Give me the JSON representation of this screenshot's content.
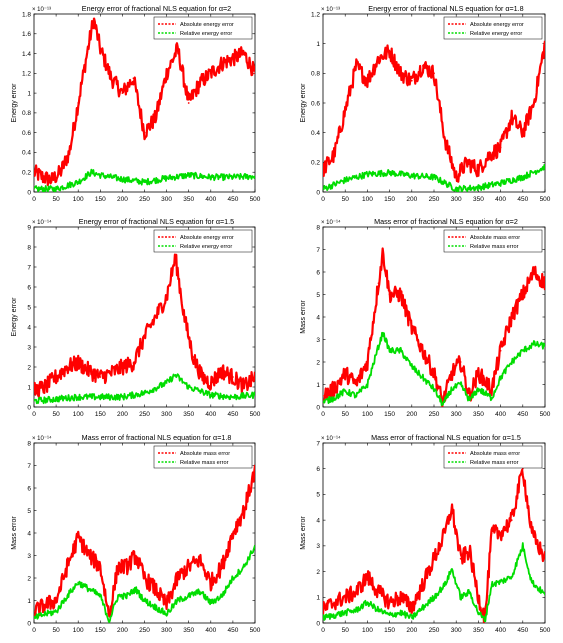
{
  "chart_data": [
    {
      "type": "line",
      "title": "Energy error of fractional NLS equation for  α=2",
      "ylabel": "Energy error",
      "xlabel": "",
      "exponent": "× 10⁻¹³",
      "xlim": [
        0,
        500
      ],
      "ylim": [
        0,
        1.8
      ],
      "xticks": [
        0,
        50,
        100,
        150,
        200,
        250,
        300,
        350,
        400,
        450,
        500
      ],
      "yticks": [
        0,
        0.2,
        0.4,
        0.6,
        0.8,
        1,
        1.2,
        1.4,
        1.6,
        1.8
      ],
      "legend": "top-right",
      "series": [
        {
          "name": "Absolute energy error",
          "color": "#ff0000",
          "x": [
            0,
            20,
            40,
            60,
            80,
            100,
            120,
            135,
            150,
            175,
            200,
            225,
            250,
            275,
            300,
            325,
            350,
            375,
            400,
            425,
            450,
            475,
            500
          ],
          "y": [
            0.2,
            0.15,
            0.12,
            0.2,
            0.4,
            0.9,
            1.4,
            1.75,
            1.45,
            1.15,
            1.0,
            1.15,
            0.6,
            0.75,
            1.2,
            1.45,
            0.9,
            1.1,
            1.2,
            1.3,
            1.35,
            1.4,
            1.2
          ]
        },
        {
          "name": "Relative energy error",
          "color": "#00dd00",
          "x": [
            0,
            50,
            100,
            130,
            150,
            200,
            250,
            300,
            350,
            400,
            450,
            500
          ],
          "y": [
            0.03,
            0.03,
            0.1,
            0.2,
            0.17,
            0.13,
            0.1,
            0.14,
            0.17,
            0.15,
            0.15,
            0.16
          ]
        }
      ]
    },
    {
      "type": "line",
      "title": "Energy error of fractional NLS equation for  α=1.8",
      "ylabel": "Energy error",
      "xlabel": "",
      "exponent": "× 10⁻¹³",
      "xlim": [
        0,
        500
      ],
      "ylim": [
        0,
        1.2
      ],
      "xticks": [
        0,
        50,
        100,
        150,
        200,
        250,
        300,
        350,
        400,
        450,
        500
      ],
      "yticks": [
        0,
        0.2,
        0.4,
        0.6,
        0.8,
        1,
        1.2
      ],
      "legend": "top-right",
      "series": [
        {
          "name": "Absolute energy error",
          "color": "#ff0000",
          "x": [
            0,
            25,
            50,
            75,
            100,
            125,
            150,
            175,
            200,
            225,
            250,
            275,
            300,
            325,
            350,
            375,
            400,
            425,
            450,
            475,
            500
          ],
          "y": [
            0.15,
            0.25,
            0.55,
            0.85,
            0.75,
            0.9,
            0.95,
            0.8,
            0.75,
            0.85,
            0.8,
            0.35,
            0.1,
            0.2,
            0.15,
            0.25,
            0.3,
            0.5,
            0.4,
            0.6,
            1.0
          ]
        },
        {
          "name": "Relative energy error",
          "color": "#00dd00",
          "x": [
            0,
            50,
            100,
            150,
            200,
            250,
            300,
            350,
            400,
            450,
            500
          ],
          "y": [
            0.02,
            0.08,
            0.12,
            0.13,
            0.11,
            0.1,
            0.02,
            0.03,
            0.06,
            0.1,
            0.17
          ]
        }
      ]
    },
    {
      "type": "line",
      "title": "Energy error of fractional NLS equation for  α=1.5",
      "ylabel": "Energy error",
      "xlabel": "",
      "exponent": "× 10⁻¹⁴",
      "xlim": [
        0,
        500
      ],
      "ylim": [
        0,
        9
      ],
      "xticks": [
        0,
        50,
        100,
        150,
        200,
        250,
        300,
        350,
        400,
        450,
        500
      ],
      "yticks": [
        0,
        1,
        2,
        3,
        4,
        5,
        6,
        7,
        8,
        9
      ],
      "legend": "top-right",
      "series": [
        {
          "name": "Absolute energy error",
          "color": "#ff0000",
          "x": [
            0,
            25,
            50,
            75,
            100,
            125,
            150,
            175,
            200,
            225,
            250,
            275,
            300,
            320,
            340,
            360,
            380,
            400,
            425,
            450,
            475,
            500
          ],
          "y": [
            0.8,
            1.0,
            1.5,
            2.0,
            2.2,
            1.8,
            1.5,
            1.7,
            2.0,
            2.2,
            3.5,
            4.5,
            5.5,
            7.5,
            4.5,
            2.5,
            1.5,
            1.2,
            1.8,
            1.5,
            1.0,
            1.5
          ]
        },
        {
          "name": "Relative energy error",
          "color": "#00dd00",
          "x": [
            0,
            50,
            100,
            150,
            200,
            250,
            300,
            320,
            350,
            400,
            450,
            500
          ],
          "y": [
            0.3,
            0.4,
            0.5,
            0.5,
            0.5,
            0.7,
            1.2,
            1.6,
            1.0,
            0.6,
            0.5,
            0.6
          ]
        }
      ]
    },
    {
      "type": "line",
      "title": "Mass error of fractional NLS equation for  α=2",
      "ylabel": "Mass error",
      "xlabel": "",
      "exponent": "× 10⁻¹⁴",
      "xlim": [
        0,
        500
      ],
      "ylim": [
        0,
        8
      ],
      "xticks": [
        0,
        50,
        100,
        150,
        200,
        250,
        300,
        350,
        400,
        450,
        500
      ],
      "yticks": [
        0,
        1,
        2,
        3,
        4,
        5,
        6,
        7,
        8
      ],
      "legend": "top-right",
      "series": [
        {
          "name": "Absolute mass error",
          "color": "#ff0000",
          "x": [
            0,
            25,
            50,
            75,
            100,
            125,
            135,
            150,
            175,
            200,
            225,
            250,
            270,
            290,
            310,
            330,
            350,
            380,
            400,
            425,
            450,
            475,
            500
          ],
          "y": [
            0.5,
            0.8,
            1.5,
            1.0,
            2.0,
            5.5,
            6.9,
            5.0,
            5.0,
            3.5,
            2.5,
            1.5,
            0.2,
            1.5,
            2.0,
            0.5,
            1.5,
            0.8,
            2.5,
            4.0,
            5.0,
            6.0,
            5.5
          ]
        },
        {
          "name": "Relative mass error",
          "color": "#00dd00",
          "x": [
            0,
            25,
            50,
            75,
            100,
            125,
            135,
            150,
            175,
            200,
            225,
            250,
            270,
            290,
            310,
            330,
            350,
            380,
            400,
            425,
            450,
            475,
            500
          ],
          "y": [
            0.2,
            0.4,
            0.7,
            0.5,
            1.0,
            2.7,
            3.3,
            2.5,
            2.5,
            1.8,
            1.3,
            0.8,
            0.1,
            0.8,
            1.0,
            0.3,
            0.8,
            0.4,
            1.3,
            2.0,
            2.5,
            2.8,
            2.7
          ]
        }
      ]
    },
    {
      "type": "line",
      "title": "Mass error of fractional NLS equation for  α=1.8",
      "ylabel": "Mass error",
      "xlabel": "",
      "exponent": "× 10⁻¹⁴",
      "xlim": [
        0,
        500
      ],
      "ylim": [
        0,
        8
      ],
      "xticks": [
        0,
        50,
        100,
        150,
        200,
        250,
        300,
        350,
        400,
        450,
        500
      ],
      "yticks": [
        0,
        1,
        2,
        3,
        4,
        5,
        6,
        7,
        8
      ],
      "legend": "top-right",
      "series": [
        {
          "name": "Absolute mass error",
          "color": "#ff0000",
          "x": [
            0,
            25,
            50,
            75,
            100,
            125,
            150,
            170,
            190,
            210,
            230,
            250,
            275,
            300,
            325,
            350,
            375,
            400,
            425,
            450,
            475,
            500
          ],
          "y": [
            0.5,
            0.8,
            1.0,
            2.5,
            3.8,
            3.0,
            2.5,
            0.3,
            2.5,
            2.5,
            3.0,
            2.0,
            1.5,
            0.8,
            2.0,
            2.5,
            2.8,
            1.8,
            2.5,
            4.0,
            5.0,
            6.8
          ]
        },
        {
          "name": "Relative mass error",
          "color": "#00dd00",
          "x": [
            0,
            25,
            50,
            75,
            100,
            125,
            150,
            170,
            190,
            210,
            230,
            250,
            275,
            300,
            325,
            350,
            375,
            400,
            425,
            450,
            475,
            500
          ],
          "y": [
            0.2,
            0.4,
            0.5,
            1.2,
            1.8,
            1.5,
            1.2,
            0.1,
            1.2,
            1.2,
            1.5,
            1.0,
            0.7,
            0.4,
            1.0,
            1.2,
            1.4,
            0.9,
            1.2,
            2.0,
            2.5,
            3.4
          ]
        }
      ]
    },
    {
      "type": "line",
      "title": "Mass error of fractional NLS equation for  α=1.5",
      "ylabel": "Mass error",
      "xlabel": "",
      "exponent": "× 10⁻¹⁴",
      "xlim": [
        0,
        500
      ],
      "ylim": [
        0,
        7
      ],
      "xticks": [
        0,
        50,
        100,
        150,
        200,
        250,
        300,
        350,
        400,
        450,
        500
      ],
      "yticks": [
        0,
        1,
        2,
        3,
        4,
        5,
        6,
        7
      ],
      "legend": "top-right",
      "series": [
        {
          "name": "Absolute mass error",
          "color": "#ff0000",
          "x": [
            0,
            25,
            50,
            75,
            100,
            125,
            150,
            175,
            200,
            225,
            250,
            275,
            290,
            310,
            330,
            350,
            365,
            380,
            400,
            425,
            450,
            470,
            500
          ],
          "y": [
            0.5,
            0.8,
            1.0,
            1.2,
            1.8,
            1.2,
            0.8,
            1.0,
            0.6,
            1.5,
            2.5,
            3.5,
            4.5,
            2.5,
            2.8,
            1.0,
            0.2,
            3.5,
            3.5,
            4.0,
            6.0,
            3.5,
            2.5
          ]
        },
        {
          "name": "Relative mass error",
          "color": "#00dd00",
          "x": [
            0,
            25,
            50,
            75,
            100,
            125,
            150,
            175,
            200,
            225,
            250,
            275,
            290,
            310,
            330,
            350,
            365,
            380,
            400,
            425,
            450,
            470,
            500
          ],
          "y": [
            0.2,
            0.3,
            0.4,
            0.5,
            0.8,
            0.5,
            0.3,
            0.4,
            0.2,
            0.6,
            1.0,
            1.5,
            2.1,
            1.0,
            1.2,
            0.4,
            0.1,
            1.5,
            1.6,
            1.8,
            3.0,
            1.6,
            1.1
          ]
        }
      ]
    }
  ]
}
